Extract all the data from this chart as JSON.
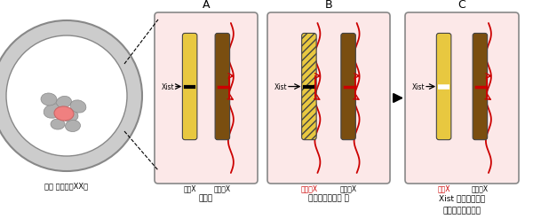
{
  "chr_yellow": "#e8c840",
  "chr_brown": "#7a4e10",
  "red": "#cc0000",
  "panel_bg": "#fce8e8",
  "panel_border": "#777777",
  "title_A": "A",
  "title_B": "B",
  "title_C": "C",
  "label_A_bottom": "受精胚",
  "label_B_bottom": "体細胞クローン 胚",
  "label_C_bottom1": "Xist ノックアウト",
  "label_C_bottom2": "体細胞クローン胚",
  "label_blasto": "雌の 胚盤胞（XX）",
  "label_actX_A": "活性X",
  "label_inactX_A": "不活性X",
  "label_actX_B": "低活性X",
  "label_inactX_B": "不活性X",
  "label_actX_C": "活性X",
  "label_inactX_C": "不活性X",
  "xist_label": "Xist",
  "fig_width": 6.0,
  "fig_height": 2.47,
  "dpi": 100
}
